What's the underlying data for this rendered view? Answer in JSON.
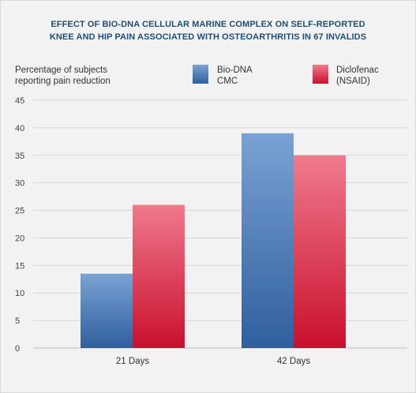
{
  "chart_data": {
    "type": "bar",
    "title_lines": [
      "EFFECT OF BIO-DNA CELLULAR MARINE COMPLEX ON SELF-REPORTED",
      "KNEE AND HIP PAIN ASSOCIATED WITH OSTEOARTHRITIS IN 67 INVALIDS"
    ],
    "ylabel_lines": [
      "Percentage of subjects",
      "reporting pain reduction"
    ],
    "categories": [
      "21 Days",
      "42 Days"
    ],
    "series": [
      {
        "name_lines": [
          "Bio-DNA",
          "CMC"
        ],
        "values": [
          13.5,
          39
        ],
        "colors": {
          "top": "#7aa2d4",
          "bottom": "#2f5f9e"
        }
      },
      {
        "name_lines": [
          "Diclofenac",
          "(NSAID)"
        ],
        "values": [
          26,
          35
        ],
        "colors": {
          "top": "#f07a8c",
          "bottom": "#c8102e"
        }
      }
    ],
    "ylim": [
      0,
      45
    ],
    "yticks": [
      0,
      5,
      10,
      15,
      20,
      25,
      30,
      35,
      40,
      45
    ],
    "grid": true,
    "legend_position": "top-right"
  }
}
